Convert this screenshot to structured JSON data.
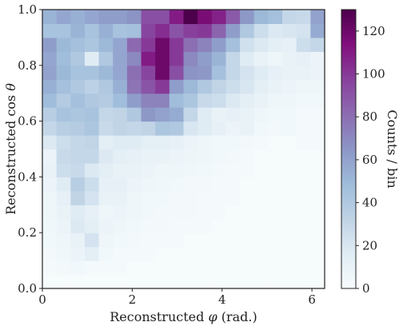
{
  "chart_data": {
    "type": "heatmap",
    "xlabel_parts": [
      "Reconstructed ",
      "φ",
      " (rad.)"
    ],
    "ylabel_parts": [
      "Reconstructed cos ",
      "θ"
    ],
    "colorbar_label": "Counts / bin",
    "xlim": [
      0,
      6.283
    ],
    "ylim": [
      0,
      1
    ],
    "x_ticks": [
      0,
      2,
      4,
      6
    ],
    "x_tick_labels": [
      "0",
      "2",
      "4",
      "6"
    ],
    "y_ticks": [
      0,
      0.2,
      0.4,
      0.6,
      0.8,
      1.0
    ],
    "y_tick_labels": [
      "0.0",
      "0.2",
      "0.4",
      "0.6",
      "0.8",
      "1.0"
    ],
    "colorbar_ticks": [
      0,
      20,
      40,
      60,
      80,
      100,
      120
    ],
    "colorbar_tick_labels": [
      "0",
      "20",
      "40",
      "60",
      "80",
      "100",
      "120"
    ],
    "colorbar_range": [
      0,
      130
    ],
    "colormap": "BuPu",
    "nx": 20,
    "ny": 20,
    "counts": [
      [
        1,
        1,
        1,
        1,
        1,
        1,
        1,
        1,
        1,
        1,
        1,
        1,
        1,
        1,
        1,
        1,
        1,
        1,
        1,
        1
      ],
      [
        2,
        3,
        4,
        2,
        2,
        2,
        1,
        1,
        1,
        1,
        1,
        1,
        1,
        1,
        1,
        1,
        1,
        1,
        1,
        1
      ],
      [
        3,
        5,
        8,
        14,
        4,
        2,
        2,
        2,
        1,
        1,
        1,
        1,
        1,
        1,
        1,
        1,
        1,
        1,
        1,
        1
      ],
      [
        4,
        6,
        10,
        22,
        6,
        4,
        3,
        2,
        2,
        2,
        1,
        1,
        1,
        1,
        1,
        1,
        1,
        1,
        1,
        1
      ],
      [
        5,
        8,
        18,
        14,
        8,
        6,
        4,
        3,
        3,
        2,
        2,
        2,
        1,
        1,
        1,
        1,
        1,
        1,
        1,
        1
      ],
      [
        6,
        10,
        16,
        12,
        6,
        8,
        6,
        4,
        3,
        3,
        3,
        2,
        2,
        1,
        1,
        1,
        1,
        1,
        1,
        1
      ],
      [
        6,
        12,
        32,
        22,
        10,
        10,
        6,
        4,
        4,
        3,
        3,
        2,
        2,
        2,
        1,
        1,
        1,
        1,
        1,
        1
      ],
      [
        8,
        16,
        36,
        26,
        12,
        12,
        8,
        6,
        5,
        4,
        3,
        3,
        2,
        2,
        1,
        1,
        1,
        1,
        1,
        1
      ],
      [
        10,
        26,
        28,
        18,
        14,
        10,
        10,
        8,
        6,
        6,
        5,
        4,
        3,
        2,
        2,
        1,
        1,
        1,
        1,
        1
      ],
      [
        8,
        28,
        30,
        30,
        18,
        14,
        12,
        10,
        10,
        8,
        7,
        6,
        4,
        3,
        2,
        1,
        1,
        1,
        1,
        1
      ],
      [
        18,
        26,
        30,
        32,
        14,
        16,
        16,
        14,
        14,
        12,
        8,
        6,
        4,
        4,
        3,
        2,
        1,
        1,
        2,
        2
      ],
      [
        30,
        36,
        38,
        42,
        28,
        32,
        30,
        32,
        42,
        40,
        20,
        16,
        12,
        8,
        10,
        4,
        3,
        4,
        2,
        2
      ],
      [
        36,
        44,
        42,
        44,
        30,
        32,
        40,
        64,
        60,
        56,
        30,
        16,
        10,
        12,
        10,
        6,
        4,
        4,
        2,
        2
      ],
      [
        48,
        38,
        46,
        40,
        38,
        48,
        62,
        72,
        72,
        48,
        42,
        28,
        26,
        18,
        14,
        10,
        6,
        6,
        4,
        4
      ],
      [
        54,
        46,
        40,
        34,
        40,
        54,
        78,
        90,
        100,
        62,
        50,
        40,
        32,
        26,
        20,
        14,
        10,
        8,
        6,
        6
      ],
      [
        60,
        50,
        44,
        44,
        50,
        58,
        80,
        96,
        120,
        92,
        66,
        64,
        46,
        30,
        22,
        16,
        12,
        10,
        10,
        8
      ],
      [
        58,
        48,
        40,
        16,
        40,
        58,
        70,
        110,
        120,
        100,
        70,
        62,
        52,
        30,
        16,
        10,
        6,
        10,
        12,
        8
      ],
      [
        62,
        50,
        46,
        42,
        50,
        58,
        82,
        100,
        120,
        100,
        80,
        72,
        62,
        46,
        24,
        18,
        14,
        12,
        26,
        30
      ],
      [
        44,
        44,
        52,
        44,
        54,
        44,
        46,
        96,
        104,
        90,
        98,
        100,
        84,
        62,
        40,
        26,
        18,
        20,
        22,
        56
      ],
      [
        52,
        58,
        54,
        58,
        62,
        62,
        66,
        92,
        92,
        110,
        130,
        116,
        108,
        88,
        64,
        50,
        46,
        30,
        28,
        60
      ]
    ]
  }
}
